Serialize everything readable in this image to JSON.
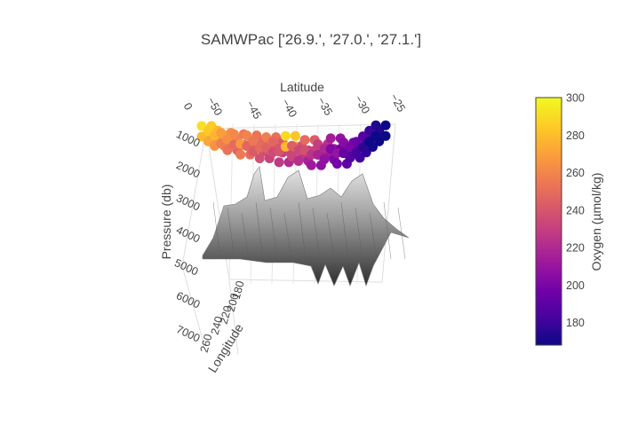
{
  "chart_data": {
    "type": "scatter",
    "title": "SAMWPac ['26.9.', '27.0.', '27.1.']",
    "axes": {
      "latitude": {
        "label": "Latitude",
        "ticks": [
          "0",
          "−50",
          "−45",
          "−40",
          "−35",
          "−30",
          "−25"
        ]
      },
      "pressure": {
        "label": "Pressure (db)",
        "ticks": [
          "1000",
          "2000",
          "3000",
          "4000",
          "5000",
          "6000",
          "7000"
        ],
        "range": [
          0,
          7000
        ]
      },
      "longitude": {
        "label": "Longitude",
        "ticks": [
          "260",
          "240",
          "220",
          "200",
          "180"
        ]
      }
    },
    "colorbar": {
      "title": "Oxygen (µmol/kg)",
      "range": [
        168,
        300
      ],
      "ticks": [
        "300",
        "280",
        "260",
        "240",
        "220",
        "200",
        "180"
      ],
      "colorscale": [
        "#0d0887",
        "#46039f",
        "#7201a8",
        "#9c179e",
        "#bd3786",
        "#d8576b",
        "#ed7953",
        "#fb9f3a",
        "#fdca26",
        "#f0f921"
      ]
    },
    "series": [
      {
        "kind": "scatter3d",
        "points": [
          {
            "lat": -53,
            "p": 1000,
            "o2": 292
          },
          {
            "lat": -52,
            "p": 1050,
            "o2": 285
          },
          {
            "lat": -51,
            "p": 1100,
            "o2": 278
          },
          {
            "lat": -50,
            "p": 1080,
            "o2": 270
          },
          {
            "lat": -49,
            "p": 1150,
            "o2": 265
          },
          {
            "lat": -48,
            "p": 1100,
            "o2": 262
          },
          {
            "lat": -47,
            "p": 1200,
            "o2": 268
          },
          {
            "lat": -46,
            "p": 1120,
            "o2": 260
          },
          {
            "lat": -45,
            "p": 1180,
            "o2": 255
          },
          {
            "lat": -44,
            "p": 1250,
            "o2": 250
          },
          {
            "lat": -43,
            "p": 1150,
            "o2": 258
          },
          {
            "lat": -42,
            "p": 1200,
            "o2": 248
          },
          {
            "lat": -41,
            "p": 1300,
            "o2": 240
          },
          {
            "lat": -40,
            "p": 1150,
            "o2": 290
          },
          {
            "lat": -39,
            "p": 1250,
            "o2": 245
          },
          {
            "lat": -38,
            "p": 1300,
            "o2": 235
          },
          {
            "lat": -37,
            "p": 1200,
            "o2": 250
          },
          {
            "lat": -36,
            "p": 1350,
            "o2": 225
          },
          {
            "lat": -35,
            "p": 1250,
            "o2": 230
          },
          {
            "lat": -34,
            "p": 1300,
            "o2": 220
          },
          {
            "lat": -33,
            "p": 1200,
            "o2": 215
          },
          {
            "lat": -32,
            "p": 1350,
            "o2": 210
          },
          {
            "lat": -31,
            "p": 1250,
            "o2": 205
          },
          {
            "lat": -30,
            "p": 1300,
            "o2": 200
          },
          {
            "lat": -29,
            "p": 1250,
            "o2": 195
          },
          {
            "lat": -28,
            "p": 1200,
            "o2": 188
          },
          {
            "lat": -27,
            "p": 1150,
            "o2": 180
          },
          {
            "lat": -26,
            "p": 1100,
            "o2": 172
          }
        ]
      },
      {
        "kind": "surface",
        "name": "",
        "colors": [
          "#2f2f2f",
          "#e6e6e6"
        ]
      }
    ]
  }
}
